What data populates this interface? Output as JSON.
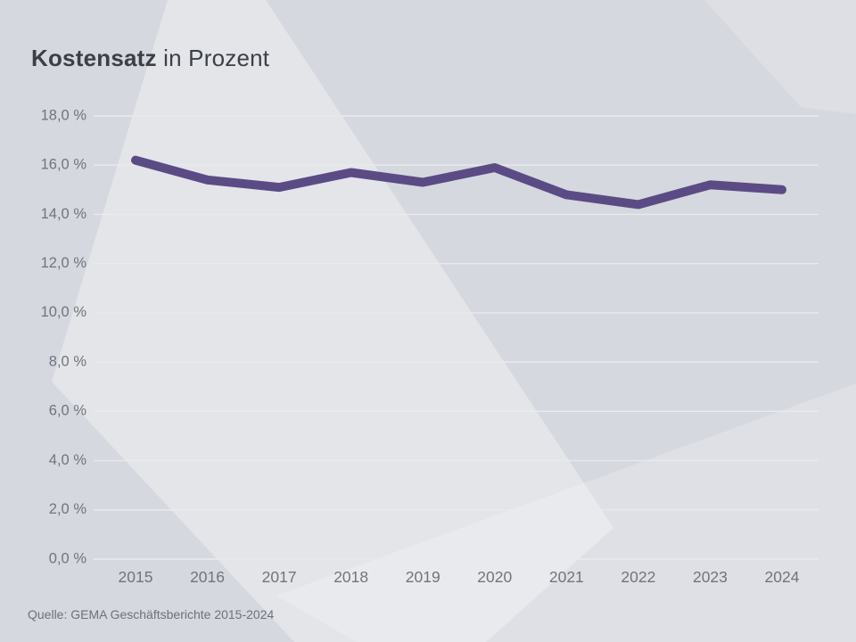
{
  "title": {
    "emphasis": "Kostensatz",
    "suffix": " in Prozent"
  },
  "source_note": "Quelle: GEMA Geschäftsberichte 2015-2024",
  "colors": {
    "background": "#d5d8de",
    "wedge_highlight": "#e3e5e9",
    "line": "#5b4b85",
    "title_text": "#3b3f48",
    "axis_text": "#70747c",
    "gridline": "#e9eaee"
  },
  "chart_data": {
    "type": "line",
    "title": "Kostensatz in Prozent",
    "categories": [
      "2015",
      "2016",
      "2017",
      "2018",
      "2019",
      "2020",
      "2021",
      "2022",
      "2023",
      "2024"
    ],
    "series": [
      {
        "name": "Kostensatz",
        "values": [
          16.2,
          15.4,
          15.1,
          15.7,
          15.3,
          15.9,
          14.8,
          14.4,
          15.2,
          15.0
        ]
      }
    ],
    "unit": "%",
    "xlabel": "",
    "ylabel": "",
    "ylim": [
      0,
      18
    ],
    "ytick_step": 2,
    "ytick_labels": [
      "0,0 %",
      "2,0 %",
      "4,0 %",
      "6,0 %",
      "8,0 %",
      "10,0 %",
      "12,0 %",
      "14,0 %",
      "16,0 %",
      "18,0 %"
    ],
    "grid": true,
    "legend": false,
    "line_width": 10
  }
}
